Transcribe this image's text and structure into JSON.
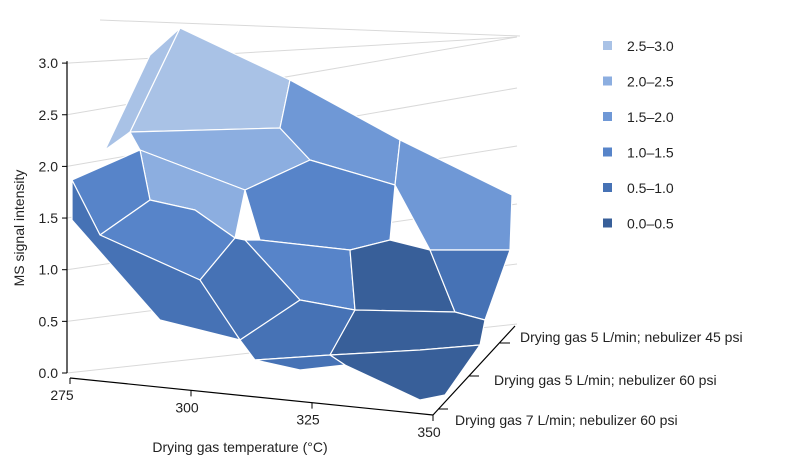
{
  "chart_data": {
    "type": "surface",
    "title": "",
    "xlabel": "Drying gas temperature (°C)",
    "ylabel": "MS signal intensity",
    "x": [
      275,
      300,
      325,
      350
    ],
    "y_tick_labels": [
      "0.0",
      "0.5",
      "1.0",
      "1.5",
      "2.0",
      "2.5",
      "3.0"
    ],
    "zlim": [
      0,
      3
    ],
    "depth_categories": [
      "Drying gas 7 L/min; nebulizer 60 psi",
      "Drying gas 5 L/min; nebulizer 60 psi",
      "Drying gas 5 L/min; nebulizer 45 psi"
    ],
    "legend": [
      {
        "label": "2.5–3.0",
        "color": "#a9c2e6"
      },
      {
        "label": "2.0–2.5",
        "color": "#8caee0"
      },
      {
        "label": "1.5–2.0",
        "color": "#6f98d6"
      },
      {
        "label": "1.0–1.5",
        "color": "#5784c9"
      },
      {
        "label": "0.5–1.0",
        "color": "#4672b5"
      },
      {
        "label": "0.0–0.5",
        "color": "#385f99"
      }
    ],
    "legend_position": "right",
    "grid": true
  }
}
